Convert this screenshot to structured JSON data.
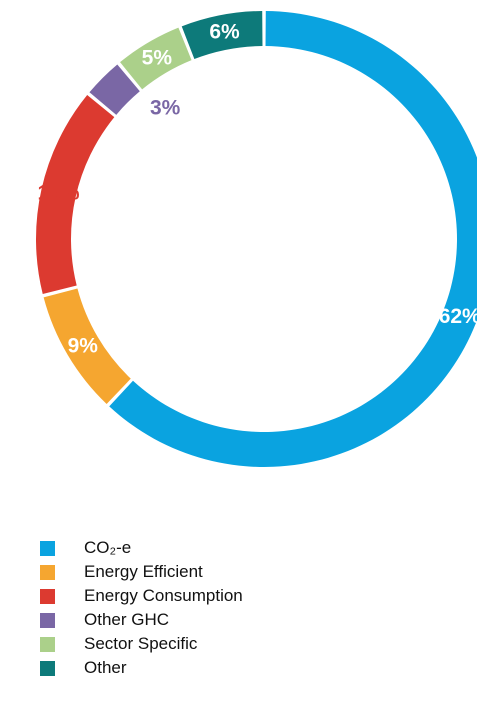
{
  "chart_data": {
    "type": "pie",
    "variant": "donut",
    "title": "",
    "legend_position": "bottom-left",
    "slices": [
      {
        "label": "CO₂-e",
        "value": 62,
        "value_label": "62%",
        "color": "#0aa3e0",
        "label_color": "#ffffff"
      },
      {
        "label": "Energy Efficient",
        "value": 9,
        "value_label": "9%",
        "color": "#f5a630",
        "label_color": "#ffffff"
      },
      {
        "label": "Energy Consumption",
        "value": 15,
        "value_label": "15%",
        "color": "#dc3a30",
        "label_color": "#dc3a30"
      },
      {
        "label": "Other GHC",
        "value": 3,
        "value_label": "3%",
        "color": "#7a67a5",
        "label_color": "#7a67a5"
      },
      {
        "label": "Sector Specific",
        "value": 5,
        "value_label": "5%",
        "color": "#abd08a",
        "label_color": "#ffffff"
      },
      {
        "label": "Other",
        "value": 6,
        "value_label": "6%",
        "color": "#0d7a7a",
        "label_color": "#ffffff"
      }
    ]
  }
}
